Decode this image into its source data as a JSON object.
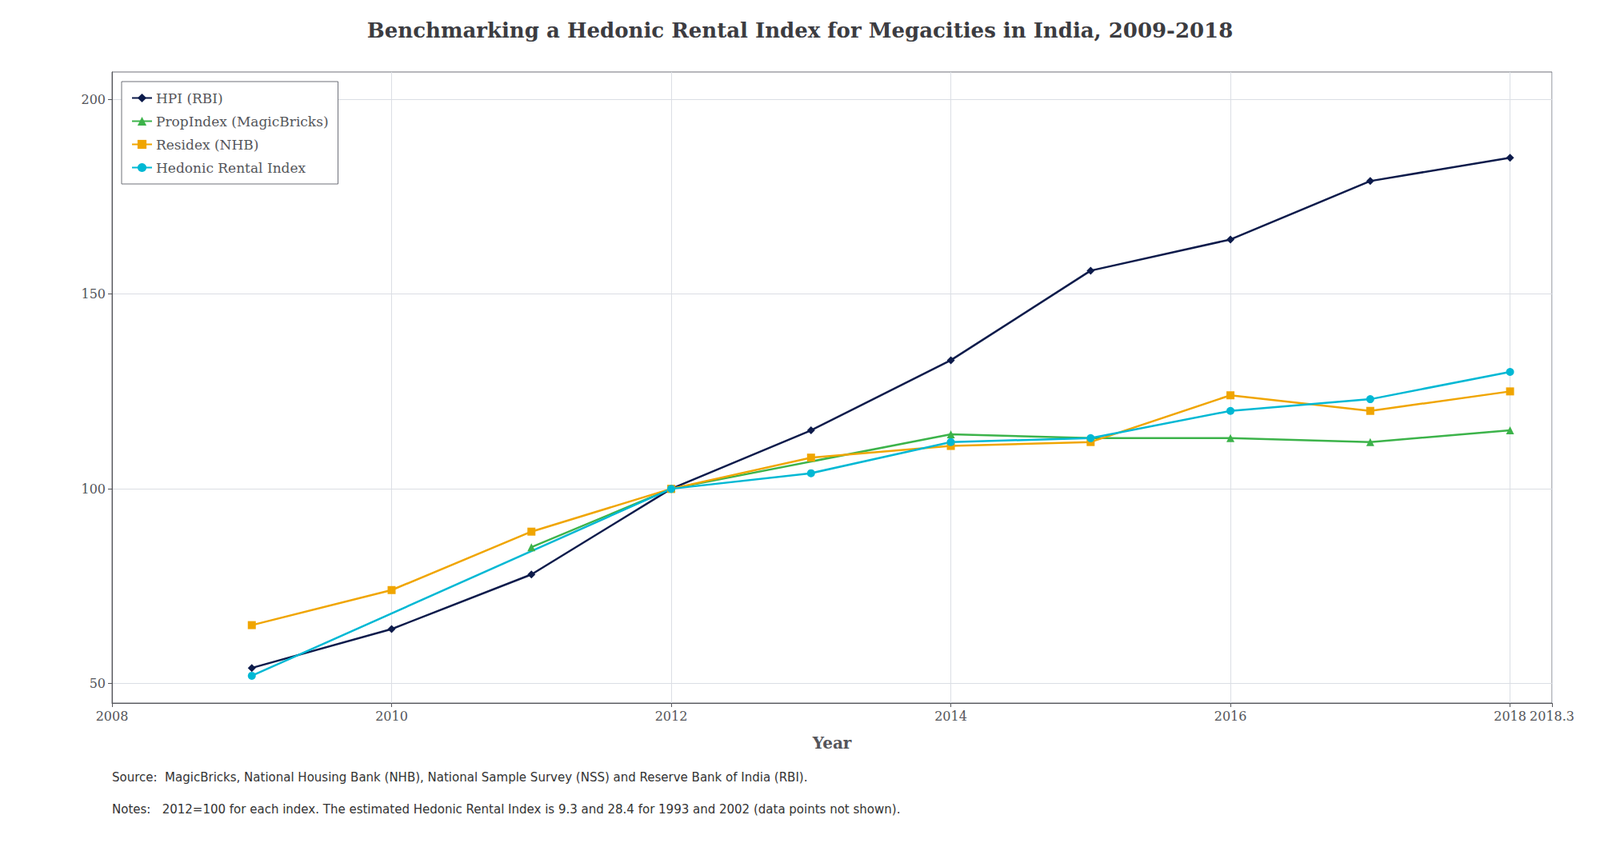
{
  "chart_data": {
    "type": "line",
    "title": "Benchmarking a Hedonic Rental Index for Megacities in India, 2009-2018",
    "xlabel": "Year",
    "annotations": [
      "Source:  MagicBricks, National Housing Bank (NHB), National Sample Survey (NSS) and Reserve Bank of India (RBI).",
      "Notes:   2012=100 for each index. The estimated Hedonic Rental Index is 9.3 and 28.4 for 1993 and 2002 (data points not shown)."
    ],
    "xlim": [
      2008,
      2018.3
    ],
    "ylim": [
      45,
      207
    ],
    "xticks": [
      2008,
      2010,
      2012,
      2014,
      2016,
      2018
    ],
    "yticks": [
      50,
      100,
      150,
      200
    ],
    "grid": true,
    "legend": "upper left",
    "series": [
      {
        "name": "HPI (RBI)",
        "color": "#0d1b4b",
        "marker": "diamond",
        "x": [
          2009,
          2010,
          2011,
          2012,
          2013,
          2014,
          2015,
          2016,
          2017,
          2018
        ],
        "values": [
          54,
          64,
          78,
          100,
          115,
          133,
          156,
          164,
          179,
          185
        ]
      },
      {
        "name": "PropIndex (MagicBricks)",
        "color": "#3cb34a",
        "marker": "triangle",
        "x": [
          2011,
          2012,
          2014,
          2015,
          2016,
          2017,
          2018
        ],
        "values": [
          85,
          100,
          114,
          113,
          113,
          112,
          115
        ]
      },
      {
        "name": "Residex (NHB)",
        "color": "#f0a500",
        "marker": "square",
        "x": [
          2009,
          2010,
          2011,
          2012,
          2013,
          2014,
          2015,
          2016,
          2017,
          2018
        ],
        "values": [
          65,
          74,
          89,
          100,
          108,
          111,
          112,
          124,
          120,
          125
        ]
      },
      {
        "name": "Hedonic Rental Index",
        "color": "#00b8d4",
        "marker": "circle",
        "x": [
          2009,
          2012,
          2013,
          2014,
          2015,
          2016,
          2017,
          2018
        ],
        "values": [
          52,
          100,
          104,
          112,
          113,
          120,
          123,
          130
        ]
      }
    ]
  }
}
